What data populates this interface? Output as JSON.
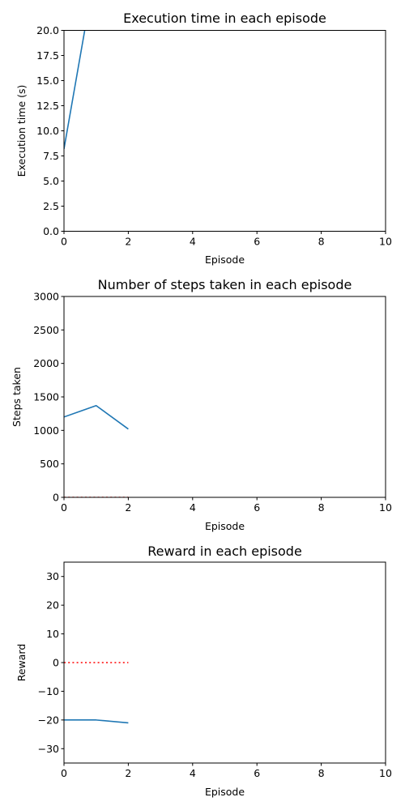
{
  "chart_data": [
    {
      "type": "line",
      "title": "Execution time in each episode",
      "xlabel": "Episode",
      "ylabel": "Execution time (s)",
      "xlim": [
        0,
        10
      ],
      "ylim": [
        0,
        20
      ],
      "xticks": [
        0,
        2,
        4,
        6,
        8,
        10
      ],
      "xtick_labels": [
        "0",
        "2",
        "4",
        "6",
        "8",
        "10"
      ],
      "yticks": [
        0,
        2.5,
        5,
        7.5,
        10,
        12.5,
        15,
        17.5,
        20
      ],
      "ytick_labels": [
        "0.0",
        "2.5",
        "5.0",
        "7.5",
        "10.0",
        "12.5",
        "15.0",
        "17.5",
        "20.0"
      ],
      "grid": false,
      "series": [
        {
          "x": [
            0,
            1
          ],
          "y": [
            8.2,
            26.5
          ],
          "color": "#1f77b4",
          "style": "solid"
        }
      ]
    },
    {
      "type": "line",
      "title": "Number of steps taken in each episode",
      "xlabel": "Episode",
      "ylabel": "Steps taken",
      "xlim": [
        0,
        10
      ],
      "ylim": [
        0,
        3000
      ],
      "xticks": [
        0,
        2,
        4,
        6,
        8,
        10
      ],
      "xtick_labels": [
        "0",
        "2",
        "4",
        "6",
        "8",
        "10"
      ],
      "yticks": [
        0,
        500,
        1000,
        1500,
        2000,
        2500,
        3000
      ],
      "ytick_labels": [
        "0",
        "500",
        "1000",
        "1500",
        "2000",
        "2500",
        "3000"
      ],
      "grid": false,
      "series": [
        {
          "x": [
            0,
            1,
            2
          ],
          "y": [
            1200,
            1370,
            1020
          ],
          "color": "#1f77b4",
          "style": "solid"
        },
        {
          "x": [
            0,
            1,
            2
          ],
          "y": [
            0,
            0,
            0
          ],
          "color": "#ff0000",
          "style": "dotted"
        }
      ]
    },
    {
      "type": "line",
      "title": "Reward in each episode",
      "xlabel": "Episode",
      "ylabel": "Reward",
      "xlim": [
        0,
        10
      ],
      "ylim": [
        -35,
        35
      ],
      "xticks": [
        0,
        2,
        4,
        6,
        8,
        10
      ],
      "xtick_labels": [
        "0",
        "2",
        "4",
        "6",
        "8",
        "10"
      ],
      "yticks": [
        -30,
        -20,
        -10,
        0,
        10,
        20,
        30
      ],
      "ytick_labels": [
        "−30",
        "−20",
        "−10",
        "0",
        "10",
        "20",
        "30"
      ],
      "grid": false,
      "series": [
        {
          "x": [
            0,
            1,
            2
          ],
          "y": [
            -20,
            -20,
            -21
          ],
          "color": "#1f77b4",
          "style": "solid"
        },
        {
          "x": [
            0,
            1,
            2
          ],
          "y": [
            0,
            0,
            0
          ],
          "color": "#ff0000",
          "style": "dotted"
        }
      ]
    }
  ]
}
